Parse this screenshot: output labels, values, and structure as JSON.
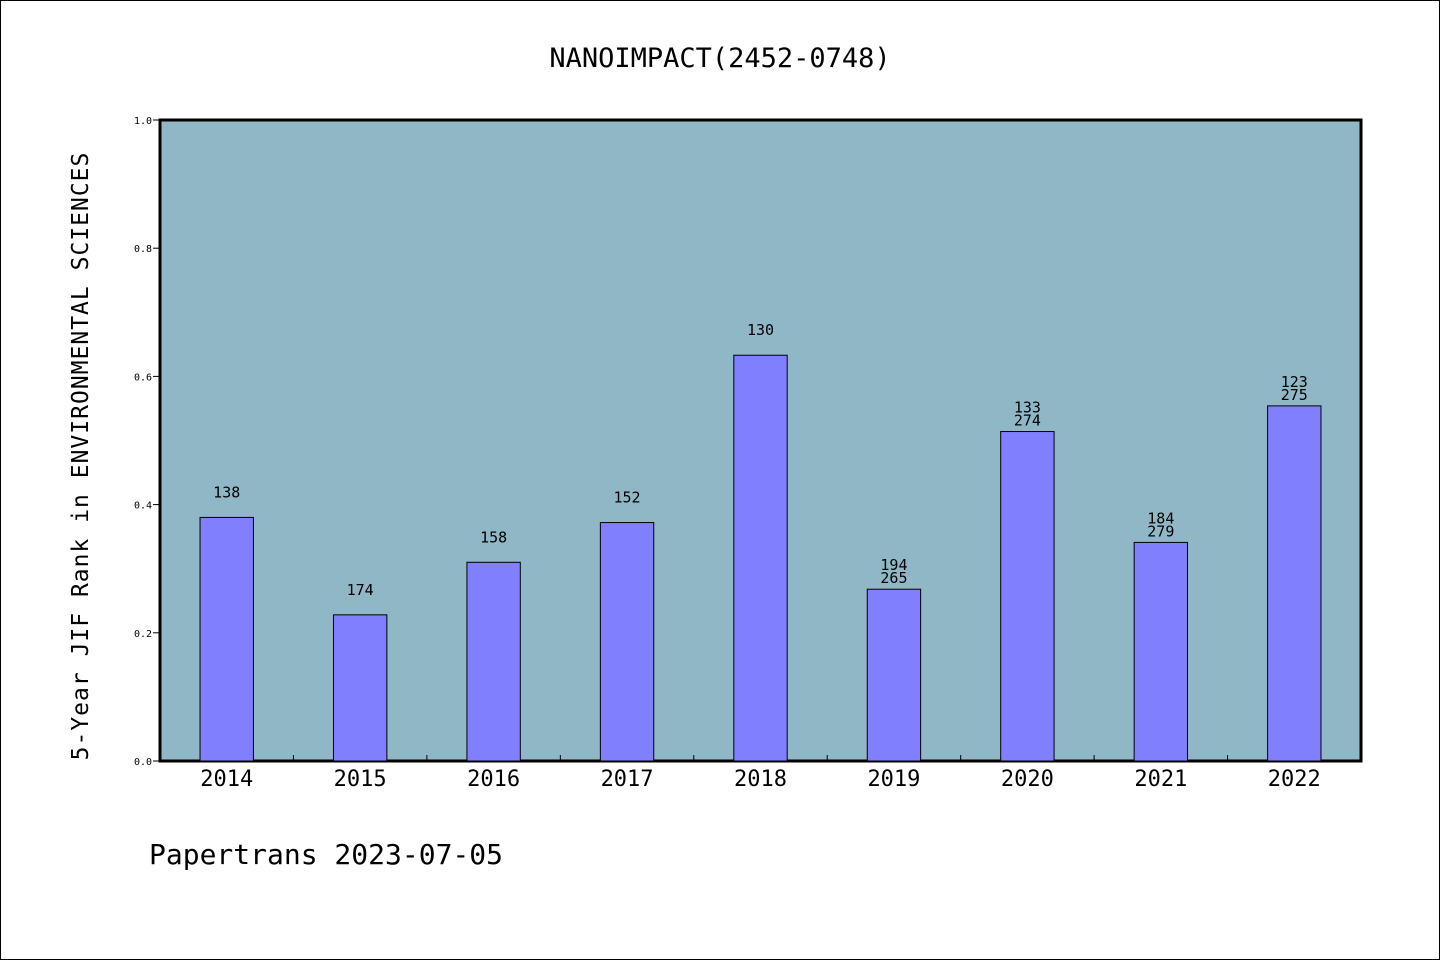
{
  "chart_data": {
    "type": "bar",
    "title": "NANOIMPACT(2452-0748)",
    "ylabel": "5-Year JIF Rank in ENVIRONMENTAL SCIENCES",
    "xlabel": "",
    "footer": "Papertrans 2023-07-05",
    "ylim": [
      0,
      1.0
    ],
    "yticks": [
      "0.0",
      "0.2",
      "0.4",
      "0.6",
      "0.8",
      "1.0"
    ],
    "ytick_values": [
      0,
      0.2,
      0.4,
      0.6,
      0.8,
      1.0
    ],
    "categories": [
      "2014",
      "2015",
      "2016",
      "2017",
      "2018",
      "2019",
      "2020",
      "2021",
      "2022"
    ],
    "values": [
      0.38,
      0.228,
      0.31,
      0.372,
      0.633,
      0.268,
      0.514,
      0.341,
      0.554
    ],
    "labels": [
      [
        "138"
      ],
      [
        "174"
      ],
      [
        "158"
      ],
      [
        "152"
      ],
      [
        "130"
      ],
      [
        "194",
        "265"
      ],
      [
        "133",
        "274"
      ],
      [
        "184",
        "279"
      ],
      [
        "123",
        "275"
      ]
    ],
    "grid": false,
    "colors": {
      "plot_bg": "#8fb7c5",
      "bar": "#8080ff",
      "bar_edge": "#000000"
    }
  }
}
